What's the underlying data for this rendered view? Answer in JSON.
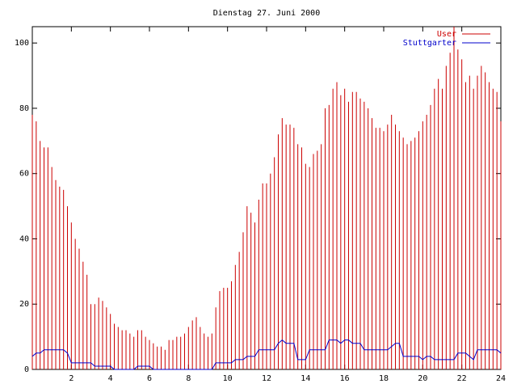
{
  "chart_data": {
    "type": "impulse-line",
    "title": "Dienstag 27. Juni 2000",
    "x": [
      0,
      0.2,
      0.4,
      0.6,
      0.8,
      1,
      1.2,
      1.4,
      1.6,
      1.8,
      2,
      2.2,
      2.4,
      2.6,
      2.8,
      3,
      3.2,
      3.4,
      3.6,
      3.8,
      4,
      4.2,
      4.4,
      4.6,
      4.8,
      5,
      5.2,
      5.4,
      5.6,
      5.8,
      6,
      6.2,
      6.4,
      6.6,
      6.8,
      7,
      7.2,
      7.4,
      7.6,
      7.8,
      8,
      8.2,
      8.4,
      8.6,
      8.8,
      9,
      9.2,
      9.4,
      9.6,
      9.8,
      10,
      10.2,
      10.4,
      10.6,
      10.8,
      11,
      11.2,
      11.4,
      11.6,
      11.8,
      12,
      12.2,
      12.4,
      12.6,
      12.8,
      13,
      13.2,
      13.4,
      13.6,
      13.8,
      14,
      14.2,
      14.4,
      14.6,
      14.8,
      15,
      15.2,
      15.4,
      15.6,
      15.8,
      16,
      16.2,
      16.4,
      16.6,
      16.8,
      17,
      17.2,
      17.4,
      17.6,
      17.8,
      18,
      18.2,
      18.4,
      18.6,
      18.8,
      19,
      19.2,
      19.4,
      19.6,
      19.8,
      20,
      20.2,
      20.4,
      20.6,
      20.8,
      21,
      21.2,
      21.4,
      21.6,
      21.8,
      22,
      22.2,
      22.4,
      22.6,
      22.8,
      23,
      23.2,
      23.4,
      23.6,
      23.8,
      24
    ],
    "series": [
      {
        "name": "User",
        "color": "#cc0000",
        "style": "impulses",
        "values": [
          78,
          76,
          70,
          68,
          68,
          62,
          58,
          56,
          55,
          50,
          45,
          40,
          37,
          33,
          29,
          20,
          20,
          22,
          21,
          19,
          17,
          14,
          13,
          12,
          12,
          11,
          10,
          12,
          12,
          10,
          9,
          8,
          7,
          7,
          6,
          9,
          9,
          10,
          10,
          11,
          13,
          15,
          16,
          13,
          11,
          10,
          11,
          19,
          24,
          25,
          25,
          27,
          32,
          36,
          42,
          50,
          48,
          45,
          52,
          57,
          57,
          60,
          65,
          72,
          77,
          75,
          75,
          74,
          69,
          68,
          63,
          62,
          66,
          67,
          69,
          80,
          81,
          86,
          88,
          84,
          86,
          82,
          85,
          85,
          83,
          82,
          80,
          77,
          74,
          74,
          73,
          75,
          78,
          75,
          73,
          71,
          69,
          70,
          71,
          73,
          76,
          78,
          81,
          86,
          89,
          86,
          93,
          97,
          105,
          98,
          95,
          88,
          90,
          86,
          90,
          93,
          91,
          88,
          86,
          85,
          76
        ]
      },
      {
        "name": "Stuttgarter",
        "color": "#0000cc",
        "style": "line",
        "values": [
          4,
          5,
          5,
          6,
          6,
          6,
          6,
          6,
          6,
          5,
          2,
          2,
          2,
          2,
          2,
          2,
          1,
          1,
          1,
          1,
          1,
          0,
          0,
          0,
          0,
          0,
          0,
          1,
          1,
          1,
          1,
          0,
          0,
          0,
          0,
          0,
          0,
          0,
          0,
          0,
          0,
          0,
          0,
          0,
          0,
          0,
          0,
          2,
          2,
          2,
          2,
          2,
          3,
          3,
          3,
          4,
          4,
          4,
          6,
          6,
          6,
          6,
          6,
          8,
          9,
          8,
          8,
          8,
          3,
          3,
          3,
          6,
          6,
          6,
          6,
          6,
          9,
          9,
          9,
          8,
          9,
          9,
          8,
          8,
          8,
          6,
          6,
          6,
          6,
          6,
          6,
          6,
          7,
          8,
          8,
          4,
          4,
          4,
          4,
          4,
          3,
          4,
          4,
          3,
          3,
          3,
          3,
          3,
          3,
          5,
          5,
          5,
          4,
          3,
          6,
          6,
          6,
          6,
          6,
          6,
          5
        ]
      }
    ],
    "xlim": [
      0,
      24
    ],
    "ylim": [
      0,
      105
    ],
    "xticks": [
      2,
      4,
      6,
      8,
      10,
      12,
      14,
      16,
      18,
      20,
      22,
      24
    ],
    "yticks": [
      0,
      20,
      40,
      60,
      80,
      100
    ],
    "legend": "top right"
  }
}
